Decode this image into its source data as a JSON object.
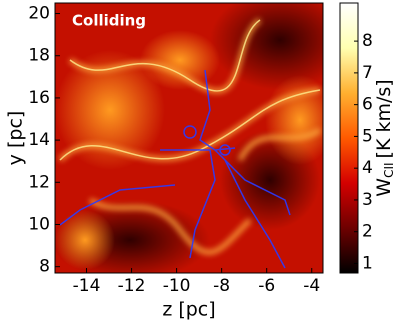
{
  "chart_data": {
    "type": "heatmap",
    "annotation": "Colliding",
    "xlabel": "z [pc]",
    "ylabel": "y [pc]",
    "xlim": [
      -15.4,
      -3.5
    ],
    "ylim": [
      7.7,
      20.5
    ],
    "xticks": [
      -14,
      -12,
      -10,
      -8,
      -6,
      -4
    ],
    "yticks": [
      8,
      10,
      12,
      14,
      16,
      18,
      20
    ],
    "colorbar": {
      "label": {
        "main": "W",
        "sub": "CII",
        "unit": "[K km/s]"
      },
      "lim": [
        0.7,
        9.2
      ],
      "ticks": [
        1,
        2,
        3,
        4,
        5,
        6,
        7,
        8
      ],
      "colormap": [
        "#000000",
        "#6e0000",
        "#d40000",
        "#ff5a00",
        "#ffb030",
        "#ffffb0",
        "#ffffff"
      ]
    }
  }
}
